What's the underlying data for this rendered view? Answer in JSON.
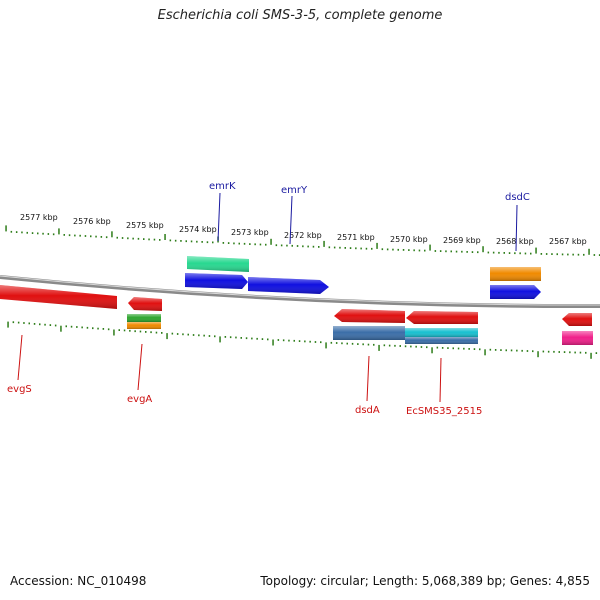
{
  "title": "Escherichia coli SMS-3-5, complete genome",
  "footer": {
    "accession": "Accession: NC_010498",
    "summary": "Topology: circular; Length: 5,068,389 bp; Genes: 4,855"
  },
  "colors": {
    "backbone": "#8a8a8a",
    "tick": "#2e7d1a",
    "label_forward": "#1a1aa0",
    "label_reverse": "#cc1111"
  },
  "ruler": {
    "upper_labels": [
      {
        "kbp": 2577,
        "text": "2577 kbp"
      },
      {
        "kbp": 2576,
        "text": "2576 kbp"
      },
      {
        "kbp": 2575,
        "text": "2575 kbp"
      },
      {
        "kbp": 2574,
        "text": "2574 kbp"
      },
      {
        "kbp": 2573,
        "text": "2573 kbp"
      },
      {
        "kbp": 2572,
        "text": "2572 kbp"
      },
      {
        "kbp": 2571,
        "text": "2571 kbp"
      },
      {
        "kbp": 2570,
        "text": "2570 kbp"
      },
      {
        "kbp": 2569,
        "text": "2569 kbp"
      },
      {
        "kbp": 2568,
        "text": "2568 kbp"
      },
      {
        "kbp": 2567,
        "text": "2567 kbp"
      }
    ]
  },
  "gene_labels": [
    {
      "name": "emrK",
      "strand": "forward"
    },
    {
      "name": "emrY",
      "strand": "forward"
    },
    {
      "name": "dsdC",
      "strand": "forward"
    },
    {
      "name": "evgS",
      "strand": "reverse"
    },
    {
      "name": "evgA",
      "strand": "reverse"
    },
    {
      "name": "dsdA",
      "strand": "reverse"
    },
    {
      "name": "EcSMS35_2515",
      "strand": "reverse"
    }
  ],
  "features": [
    {
      "type": "gene",
      "strand": "reverse",
      "color": "#e01010"
    },
    {
      "type": "gene",
      "strand": "reverse",
      "color": "#e01010"
    },
    {
      "type": "CDS",
      "strand": "reverse",
      "color": "#2fa62f"
    },
    {
      "type": "misc",
      "strand": "reverse",
      "color": "#f08a00"
    },
    {
      "type": "CDS",
      "strand": "forward",
      "color": "#28d890"
    },
    {
      "type": "gene",
      "strand": "forward",
      "color": "#1010e0"
    },
    {
      "type": "gene",
      "strand": "forward",
      "color": "#1010e0"
    },
    {
      "type": "gene",
      "strand": "reverse",
      "color": "#e01010"
    },
    {
      "type": "CDS",
      "strand": "reverse",
      "color": "#3b6ea8"
    },
    {
      "type": "gene",
      "strand": "reverse",
      "color": "#e01010"
    },
    {
      "type": "CDS",
      "strand": "reverse",
      "color": "#18c0d0"
    },
    {
      "type": "misc",
      "strand": "forward",
      "color": "#f08a00"
    },
    {
      "type": "gene",
      "strand": "forward",
      "color": "#1010e0"
    },
    {
      "type": "gene",
      "strand": "reverse",
      "color": "#e01010"
    },
    {
      "type": "CDS",
      "strand": "reverse",
      "color": "#f0208a"
    }
  ]
}
